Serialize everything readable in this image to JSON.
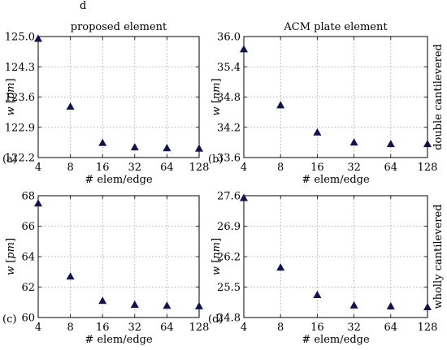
{
  "figure": {
    "label": "d",
    "col_titles": [
      "proposed element",
      "ACM plate element"
    ],
    "row_titles": [
      "double cantilevered",
      "wholly cantilevered"
    ]
  },
  "chart_data": [
    {
      "type": "scatter",
      "panel_label": "(a)",
      "title": "proposed element",
      "xlabel": "# elem/edge",
      "ylabel": "w [pm]",
      "categories": [
        "4",
        "8",
        "16",
        "32",
        "64",
        "128"
      ],
      "y_ticks": [
        "122.2",
        "122.9",
        "123.6",
        "124.3",
        "125.0"
      ],
      "ylim": [
        122.2,
        125.0
      ],
      "grid": true,
      "marker": "triangle",
      "marker_color": "#13134a",
      "values": [
        124.95,
        123.38,
        122.54,
        122.44,
        122.42,
        122.41
      ]
    },
    {
      "type": "scatter",
      "panel_label": "(b)",
      "title": "ACM plate element",
      "xlabel": "# elem/edge",
      "ylabel": "w [nm]",
      "categories": [
        "4",
        "8",
        "16",
        "32",
        "64",
        "128"
      ],
      "y_ticks": [
        "33.6",
        "34.2",
        "34.8",
        "35.4",
        "36.0"
      ],
      "ylim": [
        33.6,
        36.0
      ],
      "grid": true,
      "marker": "triangle",
      "marker_color": "#13134a",
      "values": [
        35.75,
        34.64,
        34.1,
        33.9,
        33.87,
        33.87
      ]
    },
    {
      "type": "scatter",
      "panel_label": "(c)",
      "xlabel": "# elem/edge",
      "ylabel": "w [pm]",
      "categories": [
        "4",
        "8",
        "16",
        "32",
        "64",
        "128"
      ],
      "y_ticks": [
        "60",
        "62",
        "64",
        "66",
        "68"
      ],
      "ylim": [
        60,
        68
      ],
      "grid": true,
      "marker": "triangle",
      "marker_color": "#13134a",
      "values": [
        67.5,
        62.7,
        61.1,
        60.85,
        60.78,
        60.75
      ]
    },
    {
      "type": "scatter",
      "panel_label": "(d)",
      "xlabel": "# elem/edge",
      "ylabel": "w [nm]",
      "categories": [
        "4",
        "8",
        "16",
        "32",
        "64",
        "128"
      ],
      "y_ticks": [
        "24.8",
        "25.5",
        "26.2",
        "26.9",
        "27.6"
      ],
      "ylim": [
        24.8,
        27.6
      ],
      "grid": true,
      "marker": "triangle",
      "marker_color": "#13134a",
      "values": [
        27.55,
        25.95,
        25.32,
        25.08,
        25.06,
        25.04
      ]
    }
  ]
}
